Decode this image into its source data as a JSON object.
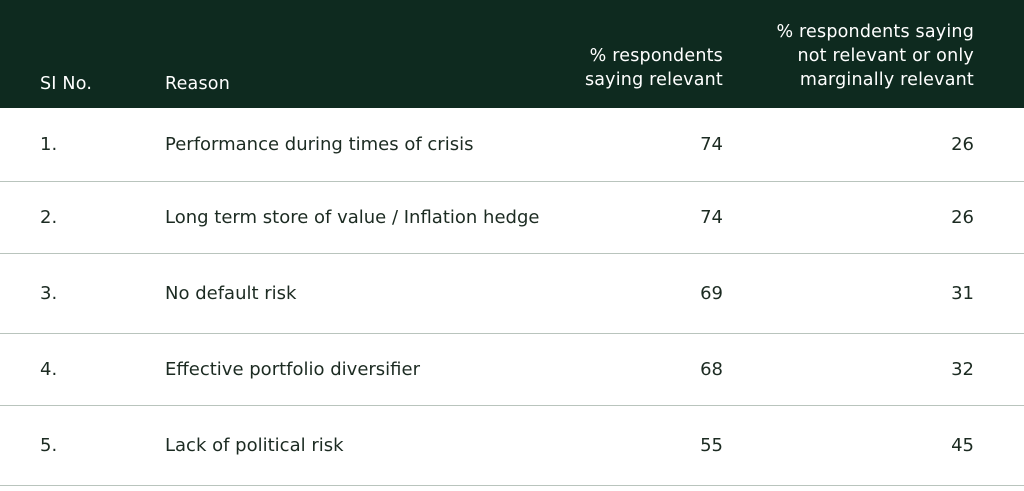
{
  "header": {
    "col_sino": "SI No.",
    "col_reason": "Reason",
    "col_relevant": [
      "% respondents",
      "saying relevant"
    ],
    "col_not_relevant": [
      "% respondents saying",
      "not relevant or only",
      "marginally relevant"
    ]
  },
  "rows": [
    {
      "no": "1.",
      "reason": "Performance during times of crisis",
      "relevant": "74",
      "not_relevant": "26"
    },
    {
      "no": "2.",
      "reason": "Long term store of value / Inflation hedge",
      "relevant": "74",
      "not_relevant": "26"
    },
    {
      "no": "3.",
      "reason": "No default risk",
      "relevant": "69",
      "not_relevant": "31"
    },
    {
      "no": "4.",
      "reason": "Effective portfolio diversifier",
      "relevant": "68",
      "not_relevant": "32"
    },
    {
      "no": "5.",
      "reason": "Lack of political risk",
      "relevant": "55",
      "not_relevant": "45"
    }
  ],
  "colors": {
    "header_bg": "#0e2a1f",
    "header_text": "#ffffff",
    "body_text": "#1c2b22",
    "row_divider": "#b9c4bd"
  }
}
